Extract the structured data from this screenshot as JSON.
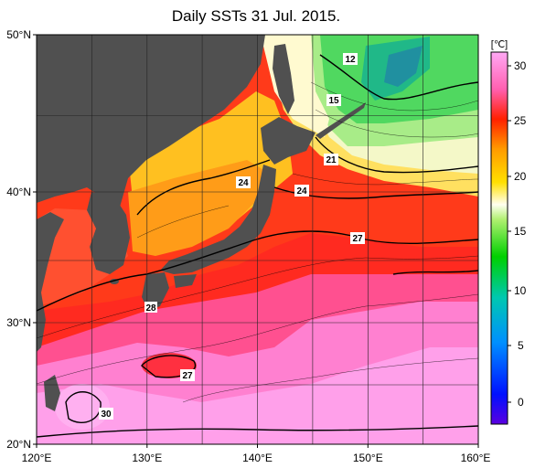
{
  "title": "Daily SSTs 31 Jul. 2015.",
  "map": {
    "lat_labels": [
      "50°N",
      "40°N",
      "30°N",
      "20°N"
    ],
    "lon_labels": [
      "120°E",
      "130°E",
      "140°E",
      "150°E",
      "160°E"
    ],
    "extent": {
      "lon_min": 120,
      "lon_max": 160,
      "lat_min": 20,
      "lat_max": 50
    },
    "contour_labels": [
      "12",
      "15",
      "21",
      "24",
      "24",
      "27",
      "27",
      "30",
      "28"
    ],
    "land_color": "#505050",
    "grid": true
  },
  "colorbar": {
    "unit": "[℃]",
    "ticks": [
      "30",
      "25",
      "20",
      "15",
      "10",
      "5",
      "0"
    ],
    "range": [
      -2,
      32
    ],
    "colors": [
      "#5a00e0",
      "#0000ff",
      "#0090ff",
      "#00c8a0",
      "#00d000",
      "#a0f060",
      "#fffff0",
      "#ffe000",
      "#ff9000",
      "#ff2000",
      "#ff60c0",
      "#ffa0f0"
    ]
  }
}
